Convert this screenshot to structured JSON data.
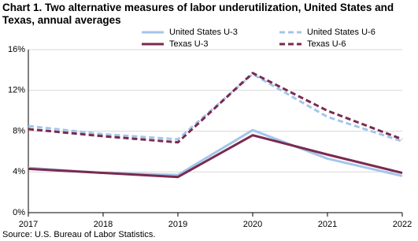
{
  "chart_data": {
    "type": "line",
    "title": "Chart 1. Two alternative measures of labor underutilization, United States and Texas, annual averages",
    "source": "Source: U.S. Bureau of Labor Statistics.",
    "x": [
      2017,
      2018,
      2019,
      2020,
      2021,
      2022
    ],
    "xlim": [
      2017,
      2022
    ],
    "xticks": [
      2017,
      2018,
      2019,
      2020,
      2021,
      2022
    ],
    "ylim": [
      0,
      16
    ],
    "yticks": [
      {
        "value": 0,
        "label": "0%"
      },
      {
        "value": 4,
        "label": "4%"
      },
      {
        "value": 8,
        "label": "8%"
      },
      {
        "value": 12,
        "label": "12%"
      },
      {
        "value": 16,
        "label": "16%"
      }
    ],
    "grid": true,
    "legend": "top",
    "series": [
      {
        "name": "United States U-3",
        "color": "#a3c6ec",
        "style": "solid",
        "values": [
          4.4,
          3.9,
          3.7,
          8.1,
          5.3,
          3.6
        ]
      },
      {
        "name": "United States U-6",
        "color": "#a3c6ec",
        "style": "dashed",
        "values": [
          8.5,
          7.7,
          7.2,
          13.6,
          9.4,
          7.0
        ]
      },
      {
        "name": "Texas U-3",
        "color": "#7b2a4f",
        "style": "solid",
        "values": [
          4.3,
          3.9,
          3.5,
          7.6,
          5.7,
          3.9
        ]
      },
      {
        "name": "Texas U-6",
        "color": "#7b2a4f",
        "style": "dashed",
        "values": [
          8.2,
          7.5,
          6.9,
          13.7,
          10.0,
          7.2
        ]
      }
    ]
  }
}
